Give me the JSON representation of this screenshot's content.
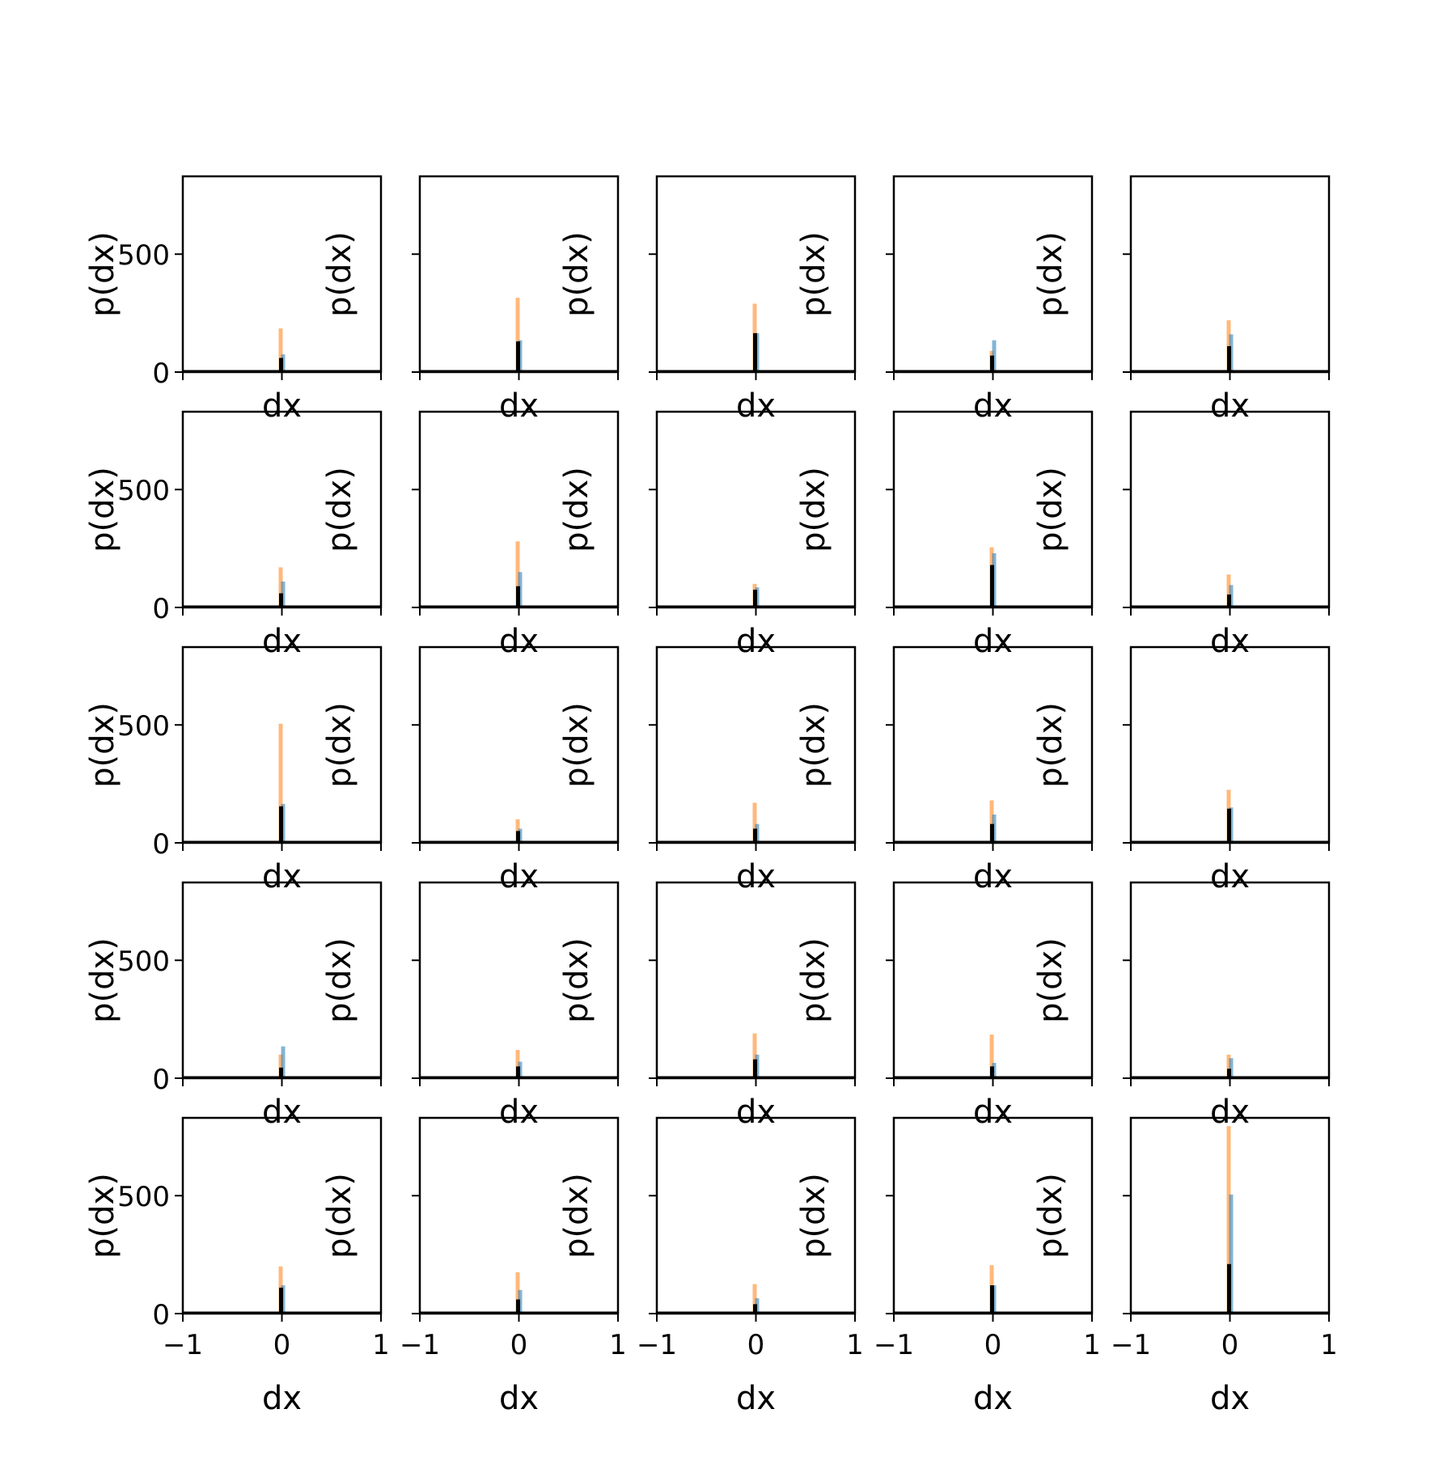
{
  "chart_data": {
    "type": "bar",
    "layout": "5x5 grid of histograms",
    "xlabel": "dx",
    "ylabel": "p(dx)",
    "xlim": [
      -1,
      1
    ],
    "ylim": [
      0,
      830
    ],
    "x_ticks": [
      -1,
      0,
      1
    ],
    "x_tick_labels": [
      "−1",
      "0",
      "1"
    ],
    "y_ticks": [
      0,
      500
    ],
    "y_tick_labels": [
      "0",
      "500"
    ],
    "series_colors": {
      "orange": "#ff7f0e",
      "blue": "#1f77b4",
      "black": "#000000"
    },
    "grid": false,
    "legend": "none",
    "panels": [
      {
        "row": 0,
        "col": 0,
        "orange": 185,
        "blue": 75,
        "black": 60
      },
      {
        "row": 0,
        "col": 1,
        "orange": 315,
        "blue": 135,
        "black": 130
      },
      {
        "row": 0,
        "col": 2,
        "orange": 290,
        "blue": 165,
        "black": 165
      },
      {
        "row": 0,
        "col": 3,
        "orange": 90,
        "blue": 135,
        "black": 70
      },
      {
        "row": 0,
        "col": 4,
        "orange": 220,
        "blue": 160,
        "black": 110
      },
      {
        "row": 1,
        "col": 0,
        "orange": 170,
        "blue": 110,
        "black": 60
      },
      {
        "row": 1,
        "col": 1,
        "orange": 280,
        "blue": 150,
        "black": 90
      },
      {
        "row": 1,
        "col": 2,
        "orange": 100,
        "blue": 85,
        "black": 75
      },
      {
        "row": 1,
        "col": 3,
        "orange": 255,
        "blue": 230,
        "black": 180
      },
      {
        "row": 1,
        "col": 4,
        "orange": 140,
        "blue": 95,
        "black": 55
      },
      {
        "row": 2,
        "col": 0,
        "orange": 505,
        "blue": 165,
        "black": 155
      },
      {
        "row": 2,
        "col": 1,
        "orange": 100,
        "blue": 60,
        "black": 50
      },
      {
        "row": 2,
        "col": 2,
        "orange": 170,
        "blue": 80,
        "black": 60
      },
      {
        "row": 2,
        "col": 3,
        "orange": 180,
        "blue": 120,
        "black": 80
      },
      {
        "row": 2,
        "col": 4,
        "orange": 225,
        "blue": 150,
        "black": 145
      },
      {
        "row": 3,
        "col": 0,
        "orange": 100,
        "blue": 135,
        "black": 45
      },
      {
        "row": 3,
        "col": 1,
        "orange": 120,
        "blue": 70,
        "black": 50
      },
      {
        "row": 3,
        "col": 2,
        "orange": 190,
        "blue": 100,
        "black": 80
      },
      {
        "row": 3,
        "col": 3,
        "orange": 185,
        "blue": 65,
        "black": 50
      },
      {
        "row": 3,
        "col": 4,
        "orange": 100,
        "blue": 85,
        "black": 40
      },
      {
        "row": 4,
        "col": 0,
        "orange": 200,
        "blue": 120,
        "black": 110
      },
      {
        "row": 4,
        "col": 1,
        "orange": 175,
        "blue": 100,
        "black": 60
      },
      {
        "row": 4,
        "col": 2,
        "orange": 125,
        "blue": 65,
        "black": 40
      },
      {
        "row": 4,
        "col": 3,
        "orange": 205,
        "blue": 120,
        "black": 120
      },
      {
        "row": 4,
        "col": 4,
        "orange": 795,
        "blue": 505,
        "black": 210
      }
    ]
  }
}
